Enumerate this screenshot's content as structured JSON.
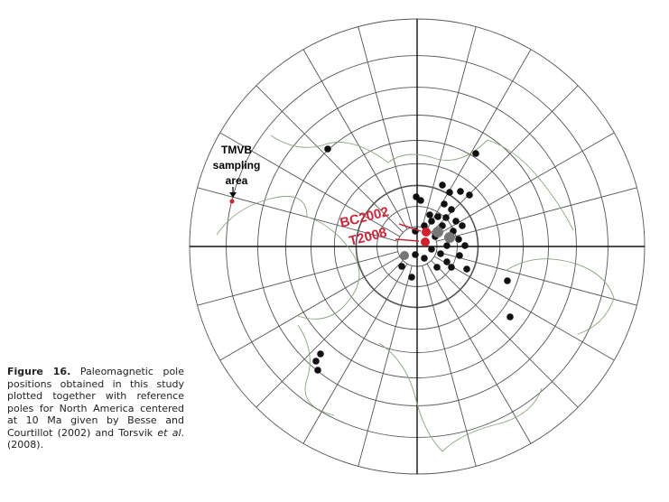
{
  "figure": {
    "labels": {
      "area_line1": "TMVB",
      "area_line2": "sampling",
      "area_line3": "area",
      "pole1": "BC2002",
      "pole2": "T2008"
    },
    "caption": {
      "label": "Figure 16.",
      "text": "Paleomagnetic pole positions obtained in this study plotted together with reference poles for North America centered at 10 Ma given by Besse and Courtillot (2002) and Torsvik",
      "italic": "et al",
      "end": ". (2008)."
    }
  }
}
